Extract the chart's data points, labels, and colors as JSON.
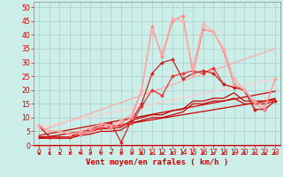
{
  "background_color": "#cceee8",
  "grid_color": "#aacccc",
  "xlabel": "Vent moyen/en rafales ( km/h )",
  "xlabel_color": "#cc0000",
  "xlim": [
    -0.5,
    23.5
  ],
  "ylim": [
    0,
    52
  ],
  "xticks": [
    0,
    1,
    2,
    3,
    4,
    5,
    6,
    7,
    8,
    9,
    10,
    11,
    12,
    13,
    14,
    15,
    16,
    17,
    18,
    19,
    20,
    21,
    22,
    23
  ],
  "yticks": [
    0,
    5,
    10,
    15,
    20,
    25,
    30,
    35,
    40,
    45,
    50
  ],
  "tick_fontsize": 5.5,
  "xlabel_fontsize": 6.5,
  "lines": [
    {
      "x": [
        0,
        23
      ],
      "y": [
        2.5,
        16.5
      ],
      "color": "#cc0000",
      "lw": 0.9,
      "marker": null,
      "zo": 2
    },
    {
      "x": [
        0,
        23
      ],
      "y": [
        3.5,
        19.5
      ],
      "color": "#cc0000",
      "lw": 0.9,
      "marker": null,
      "zo": 2
    },
    {
      "x": [
        0,
        23
      ],
      "y": [
        5.0,
        35.0
      ],
      "color": "#ffaaaa",
      "lw": 0.9,
      "marker": null,
      "zo": 2
    },
    {
      "x": [
        0,
        23
      ],
      "y": [
        6.5,
        24.0
      ],
      "color": "#ffcccc",
      "lw": 0.9,
      "marker": null,
      "zo": 2
    },
    {
      "x": [
        0,
        1,
        2,
        3,
        4,
        5,
        6,
        7,
        8,
        9,
        10,
        11,
        12,
        13,
        14,
        15,
        16,
        17,
        18,
        19,
        20,
        21,
        22,
        23
      ],
      "y": [
        2.5,
        2.5,
        2.5,
        2.5,
        3.5,
        4,
        5,
        5,
        5.5,
        8,
        9,
        10,
        10,
        11,
        12,
        15,
        15,
        16,
        16,
        17,
        15,
        15,
        15,
        16
      ],
      "color": "#cc0000",
      "lw": 0.9,
      "marker": null,
      "zo": 3
    },
    {
      "x": [
        0,
        1,
        2,
        3,
        4,
        5,
        6,
        7,
        8,
        9,
        10,
        11,
        12,
        13,
        14,
        15,
        16,
        17,
        18,
        19,
        20,
        21,
        22,
        23
      ],
      "y": [
        3,
        3,
        3,
        3,
        4,
        5,
        6,
        6,
        6.5,
        9,
        10,
        11,
        11,
        12.5,
        13,
        16,
        16,
        17,
        17,
        19,
        16,
        16,
        16,
        17
      ],
      "color": "#cc0000",
      "lw": 0.9,
      "marker": null,
      "zo": 3
    },
    {
      "x": [
        0,
        1,
        2,
        3,
        4,
        5,
        6,
        7,
        8,
        9,
        10,
        11,
        12,
        13,
        14,
        15,
        16,
        17,
        18,
        19,
        20,
        21,
        22,
        23
      ],
      "y": [
        7,
        3,
        3,
        3,
        4,
        5,
        6,
        7,
        7,
        8,
        14,
        20,
        18,
        25,
        26,
        27,
        26,
        28,
        22,
        21,
        20,
        13,
        13,
        16
      ],
      "color": "#ee3333",
      "lw": 0.9,
      "marker": "D",
      "markersize": 2.0,
      "zo": 4
    },
    {
      "x": [
        0,
        1,
        2,
        3,
        4,
        5,
        6,
        7,
        8,
        9,
        10,
        11,
        12,
        13,
        14,
        15,
        16,
        17,
        18,
        19,
        20,
        21,
        22,
        23
      ],
      "y": [
        7,
        3,
        3,
        3,
        5,
        6,
        7,
        8,
        1,
        9,
        15,
        26,
        30,
        31,
        24,
        26,
        27,
        26,
        22,
        21,
        20,
        13,
        13,
        16
      ],
      "color": "#cc2222",
      "lw": 0.9,
      "marker": "D",
      "markersize": 2.0,
      "zo": 4
    },
    {
      "x": [
        0,
        1,
        2,
        3,
        4,
        5,
        6,
        7,
        8,
        9,
        10,
        11,
        12,
        13,
        14,
        15,
        16,
        17,
        18,
        19,
        20,
        21,
        22,
        23
      ],
      "y": [
        7,
        5,
        5,
        4,
        4,
        5,
        7,
        6,
        8,
        10,
        20,
        43,
        32,
        45,
        47,
        26,
        42,
        41,
        34,
        22,
        20,
        15,
        13,
        24
      ],
      "color": "#ff8888",
      "lw": 0.9,
      "marker": "D",
      "markersize": 2.0,
      "zo": 4
    },
    {
      "x": [
        0,
        1,
        2,
        3,
        4,
        5,
        6,
        7,
        8,
        9,
        10,
        11,
        12,
        13,
        14,
        15,
        16,
        17,
        18,
        19,
        20,
        21,
        22,
        23
      ],
      "y": [
        7,
        5,
        5,
        4,
        5,
        6,
        8,
        7,
        9,
        11,
        20,
        42,
        33,
        46,
        45,
        28,
        44,
        41,
        35,
        24,
        20,
        16,
        14,
        24
      ],
      "color": "#ffaaaa",
      "lw": 0.9,
      "marker": "D",
      "markersize": 2.0,
      "zo": 4
    }
  ],
  "wind_x": [
    0,
    1,
    2,
    3,
    4,
    5,
    6,
    7,
    8,
    9,
    10,
    11,
    12,
    13,
    14,
    15,
    16,
    17,
    18,
    19,
    20,
    21,
    22,
    23
  ],
  "wind_angles": [
    0,
    210,
    220,
    210,
    230,
    240,
    240,
    250,
    210,
    180,
    0,
    0,
    0,
    180,
    180,
    0,
    0,
    0,
    0,
    0,
    0,
    0,
    0,
    210
  ]
}
